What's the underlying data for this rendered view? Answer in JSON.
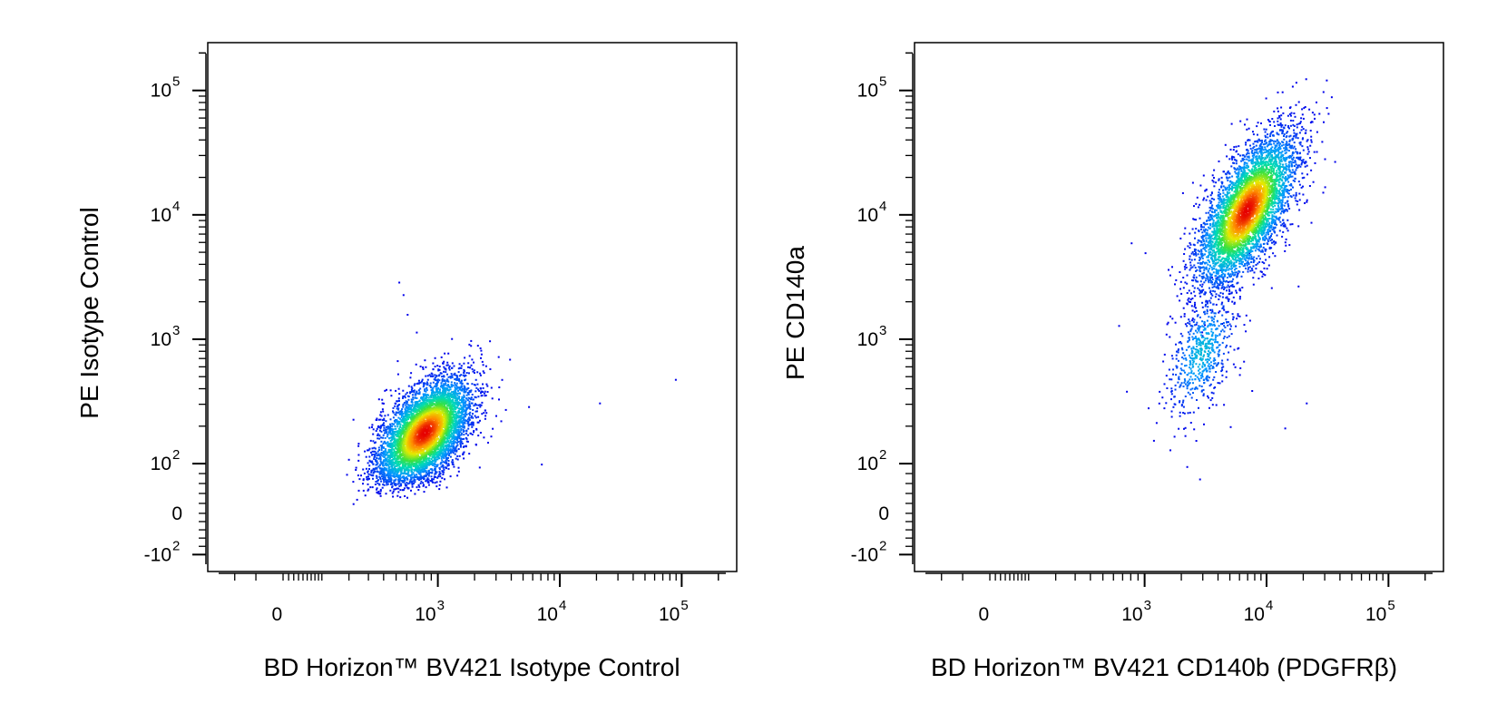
{
  "chart_data": [
    {
      "type": "scatter",
      "style": "density-pseudocolor",
      "title": "",
      "xlabel": "BD Horizon™ BV421 Isotype Control",
      "ylabel": "PE Isotype Control",
      "x_scale": "biexponential",
      "y_scale": "biexponential",
      "xlim": [
        -300,
        200000
      ],
      "ylim": [
        -200,
        250000
      ],
      "x_ticks": [
        {
          "value": 0,
          "label": "0"
        },
        {
          "value": 1000,
          "label": "10",
          "exp": "3"
        },
        {
          "value": 10000,
          "label": "10",
          "exp": "4"
        },
        {
          "value": 100000,
          "label": "10",
          "exp": "5"
        }
      ],
      "y_ticks": [
        {
          "value": -100,
          "label": "-10",
          "exp": "2"
        },
        {
          "value": 0,
          "label": "0"
        },
        {
          "value": 100,
          "label": "10",
          "exp": "2"
        },
        {
          "value": 1000,
          "label": "10",
          "exp": "3"
        },
        {
          "value": 10000,
          "label": "10",
          "exp": "4"
        },
        {
          "value": 100000,
          "label": "10",
          "exp": "5"
        }
      ],
      "population": {
        "x_center": 800,
        "y_center": 180,
        "x_spread_decades": 0.18,
        "y_spread_decades": 0.22,
        "correlation": 0.55,
        "n_events": 5500
      },
      "outliers": [
        [
          520,
          2900
        ],
        [
          560,
          2300
        ],
        [
          600,
          1600
        ],
        [
          700,
          1150
        ],
        [
          1200,
          780
        ],
        [
          5500,
          290
        ],
        [
          7000,
          100
        ],
        [
          21000,
          310
        ],
        [
          88000,
          480
        ]
      ]
    },
    {
      "type": "scatter",
      "style": "density-pseudocolor",
      "title": "",
      "xlabel": "BD Horizon™ BV421 CD140b (PDGFRβ)",
      "ylabel": "PE CD140a",
      "x_scale": "biexponential",
      "y_scale": "biexponential",
      "xlim": [
        -300,
        200000
      ],
      "ylim": [
        -200,
        250000
      ],
      "x_ticks": [
        {
          "value": 0,
          "label": "0"
        },
        {
          "value": 1000,
          "label": "10",
          "exp": "3"
        },
        {
          "value": 10000,
          "label": "10",
          "exp": "4"
        },
        {
          "value": 100000,
          "label": "10",
          "exp": "5"
        }
      ],
      "y_ticks": [
        {
          "value": -100,
          "label": "-10",
          "exp": "2"
        },
        {
          "value": 0,
          "label": "0"
        },
        {
          "value": 100,
          "label": "10",
          "exp": "2"
        },
        {
          "value": 1000,
          "label": "10",
          "exp": "3"
        },
        {
          "value": 10000,
          "label": "10",
          "exp": "4"
        },
        {
          "value": 100000,
          "label": "10",
          "exp": "5"
        }
      ],
      "population": {
        "x_center": 6800,
        "y_center": 11000,
        "x_spread_decades": 0.2,
        "y_spread_decades": 0.3,
        "correlation": 0.65,
        "n_events": 5000
      },
      "tail": {
        "x_center": 2900,
        "y_center": 800,
        "x_spread_decades": 0.14,
        "y_spread_decades": 0.25,
        "correlation": 0.5,
        "n_events": 600
      },
      "outliers": [
        [
          800,
          6000
        ],
        [
          1000,
          5000
        ],
        [
          650,
          1300
        ],
        [
          1600,
          130
        ],
        [
          2200,
          95
        ],
        [
          2800,
          70
        ],
        [
          5000,
          200
        ],
        [
          7500,
          390
        ],
        [
          14000,
          195
        ],
        [
          21000,
          310
        ],
        [
          18000,
          2700
        ]
      ]
    }
  ]
}
